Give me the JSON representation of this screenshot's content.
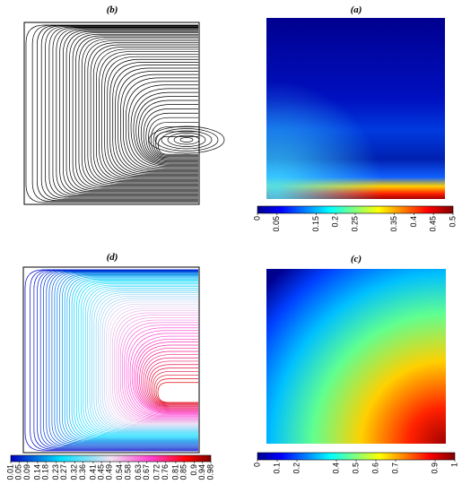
{
  "panels": [
    {
      "label": "(b)"
    },
    {
      "label": "(a)",
      "colorbar": {
        "range": [
          0,
          0.5
        ],
        "ticks": [
          0,
          0.05,
          0.15,
          0.2,
          0.25,
          0.35,
          0.4,
          0.45,
          0.5
        ]
      }
    },
    {
      "label": "(d)",
      "colorbar": {
        "range": [
          0.01,
          0.98
        ],
        "ticks": [
          0.01,
          0.05,
          0.09,
          0.14,
          0.18,
          0.23,
          0.27,
          0.32,
          0.36,
          0.41,
          0.45,
          0.49,
          0.54,
          0.58,
          0.63,
          0.67,
          0.72,
          0.76,
          0.81,
          0.85,
          0.9,
          0.94,
          0.98
        ]
      }
    },
    {
      "label": "(c)",
      "colorbar": {
        "range": [
          0,
          1
        ],
        "ticks": [
          0,
          0.1,
          0.2,
          0.4,
          0.5,
          0.6,
          0.7,
          0.9,
          1
        ]
      }
    }
  ]
}
